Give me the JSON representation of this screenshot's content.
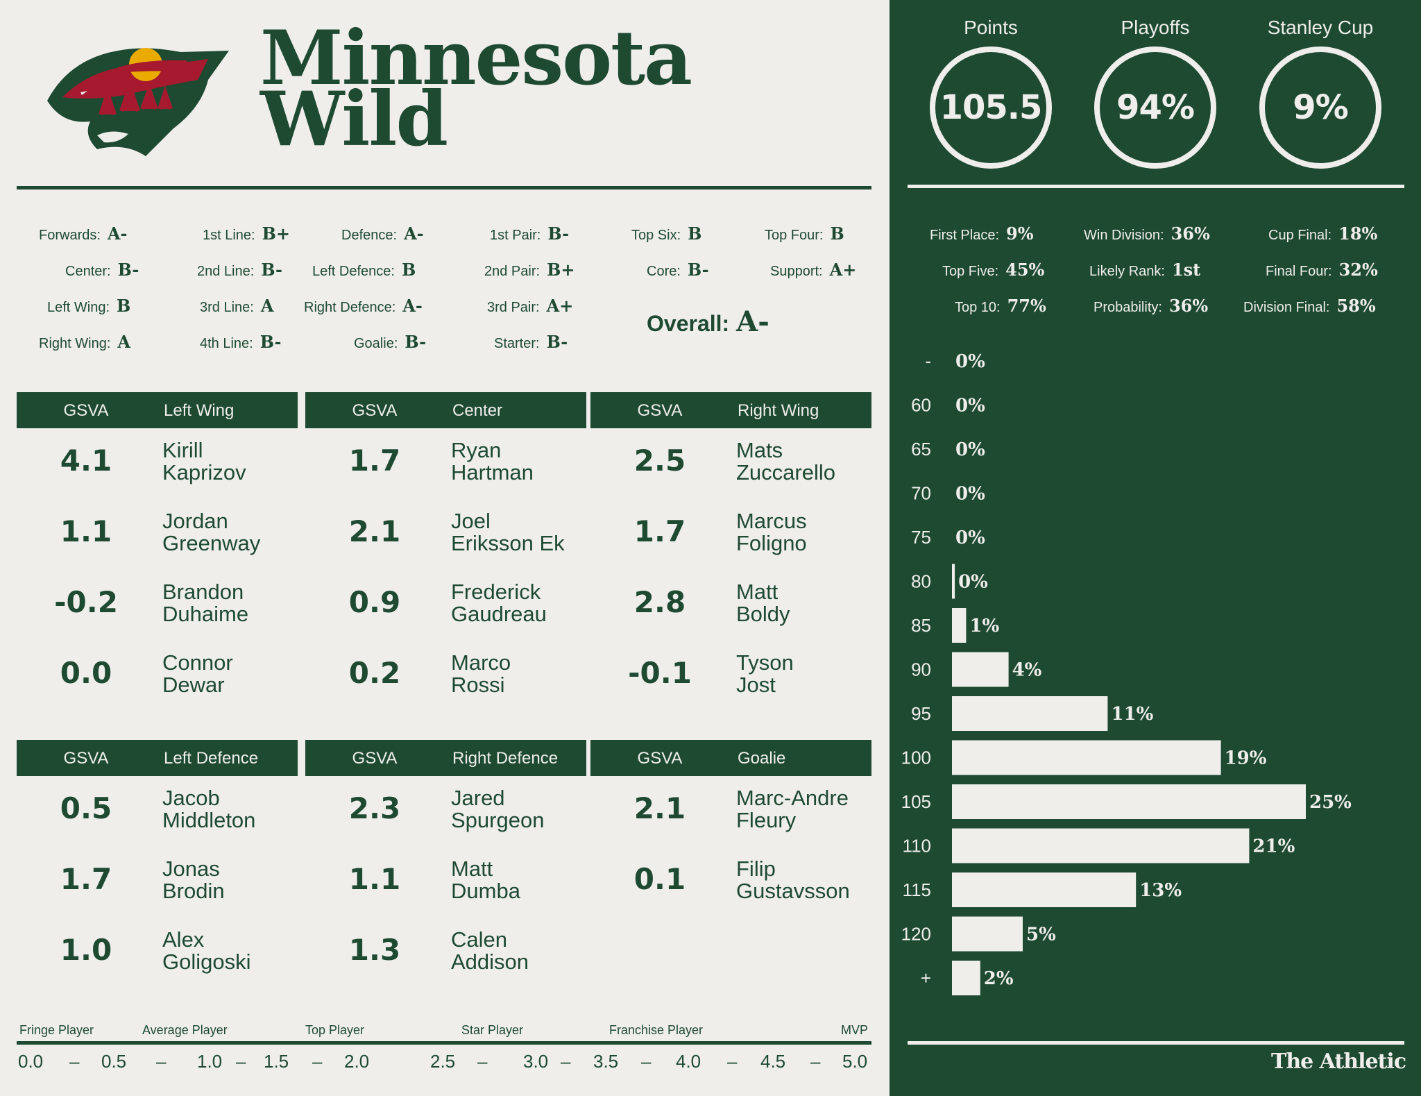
{
  "team": {
    "line1": "Minnesota",
    "line2": "Wild"
  },
  "colors": {
    "primary": "#1e4a32",
    "background": "#efeeeb",
    "logo_red": "#a6192e",
    "logo_gold": "#eaaa00"
  },
  "grades": [
    {
      "label": "Forwards:",
      "value": "A-"
    },
    {
      "label": "Center:",
      "value": "B-"
    },
    {
      "label": "Left Wing:",
      "value": "B"
    },
    {
      "label": "Right Wing:",
      "value": "A"
    },
    {
      "label": "1st Line:",
      "value": "B+"
    },
    {
      "label": "2nd Line:",
      "value": "B-"
    },
    {
      "label": "3rd Line:",
      "value": "A"
    },
    {
      "label": "4th Line:",
      "value": "B-"
    },
    {
      "label": "Defence:",
      "value": "A-"
    },
    {
      "label": "Left Defence:",
      "value": "B"
    },
    {
      "label": "Right Defence:",
      "value": "A-"
    },
    {
      "label": "Goalie:",
      "value": "B-"
    },
    {
      "label": "1st Pair:",
      "value": "B-"
    },
    {
      "label": "2nd Pair:",
      "value": "B+"
    },
    {
      "label": "3rd Pair:",
      "value": "A+"
    },
    {
      "label": "Starter:",
      "value": "B-"
    },
    {
      "label": "Top Six:",
      "value": "B"
    },
    {
      "label": "Core:",
      "value": "B-"
    },
    {
      "label": "Top Four:",
      "value": "B"
    },
    {
      "label": "Support:",
      "value": "A+"
    }
  ],
  "overall": {
    "label": "Overall:",
    "value": "A-"
  },
  "positions": [
    {
      "col": "GSVA",
      "title": "Left Wing",
      "players": [
        {
          "gsva": "4.1",
          "first": "Kirill",
          "last": "Kaprizov"
        },
        {
          "gsva": "1.1",
          "first": "Jordan",
          "last": "Greenway"
        },
        {
          "gsva": "-0.2",
          "first": "Brandon",
          "last": "Duhaime"
        },
        {
          "gsva": "0.0",
          "first": "Connor",
          "last": "Dewar"
        }
      ]
    },
    {
      "col": "GSVA",
      "title": "Center",
      "players": [
        {
          "gsva": "1.7",
          "first": "Ryan",
          "last": "Hartman"
        },
        {
          "gsva": "2.1",
          "first": "Joel",
          "last": "Eriksson Ek"
        },
        {
          "gsva": "0.9",
          "first": "Frederick",
          "last": "Gaudreau"
        },
        {
          "gsva": "0.2",
          "first": "Marco",
          "last": "Rossi"
        }
      ]
    },
    {
      "col": "GSVA",
      "title": "Right Wing",
      "players": [
        {
          "gsva": "2.5",
          "first": "Mats",
          "last": "Zuccarello"
        },
        {
          "gsva": "1.7",
          "first": "Marcus",
          "last": "Foligno"
        },
        {
          "gsva": "2.8",
          "first": "Matt",
          "last": "Boldy"
        },
        {
          "gsva": "-0.1",
          "first": "Tyson",
          "last": "Jost"
        }
      ]
    },
    {
      "col": "GSVA",
      "title": "Left Defence",
      "players": [
        {
          "gsva": "0.5",
          "first": "Jacob",
          "last": "Middleton"
        },
        {
          "gsva": "1.7",
          "first": "Jonas",
          "last": "Brodin"
        },
        {
          "gsva": "1.0",
          "first": "Alex",
          "last": "Goligoski"
        }
      ]
    },
    {
      "col": "GSVA",
      "title": "Right Defence",
      "players": [
        {
          "gsva": "2.3",
          "first": "Jared",
          "last": "Spurgeon"
        },
        {
          "gsva": "1.1",
          "first": "Matt",
          "last": "Dumba"
        },
        {
          "gsva": "1.3",
          "first": "Calen",
          "last": "Addison"
        }
      ]
    },
    {
      "col": "GSVA",
      "title": "Goalie",
      "players": [
        {
          "gsva": "2.1",
          "first": "Marc-Andre",
          "last": "Fleury"
        },
        {
          "gsva": "0.1",
          "first": "Filip",
          "last": "Gustavsson"
        }
      ]
    }
  ],
  "scale": {
    "labels": [
      "Fringe Player",
      "Average Player",
      "Top Player",
      "Star Player",
      "Franchise Player",
      "MVP"
    ],
    "numbers": [
      "0.0",
      "–",
      "0.5",
      "–",
      "1.0",
      "–",
      "1.5",
      "–",
      "2.0",
      "2.5",
      "–",
      "3.0",
      "–",
      "3.5",
      "–",
      "4.0",
      "–",
      "4.5",
      "–",
      "5.0"
    ]
  },
  "summary": [
    {
      "title": "Points",
      "value": "105.5"
    },
    {
      "title": "Playoffs",
      "value": "94%"
    },
    {
      "title": "Stanley Cup",
      "value": "9%"
    }
  ],
  "probabilities": [
    {
      "label": "First Place:",
      "value": "9%"
    },
    {
      "label": "Top Five:",
      "value": "45%"
    },
    {
      "label": "Top 10:",
      "value": "77%"
    },
    {
      "label": "Win Division:",
      "value": "36%"
    },
    {
      "label": "Likely Rank:",
      "value": "1st"
    },
    {
      "label": "Probability:",
      "value": "36%"
    },
    {
      "label": "Cup Final:",
      "value": "18%"
    },
    {
      "label": "Final Four:",
      "value": "32%"
    },
    {
      "label": "Division Final:",
      "value": "58%"
    }
  ],
  "chart_data": {
    "type": "bar",
    "orientation": "horizontal",
    "categories": [
      "-",
      "60",
      "65",
      "70",
      "75",
      "80",
      "85",
      "90",
      "95",
      "100",
      "105",
      "110",
      "115",
      "120",
      "+"
    ],
    "values": [
      0,
      0,
      0,
      0,
      0,
      0.2,
      1,
      4,
      11,
      19,
      25,
      21,
      13,
      5,
      2
    ],
    "value_labels": [
      "0%",
      "0%",
      "0%",
      "0%",
      "0%",
      "0%",
      "1%",
      "4%",
      "11%",
      "19%",
      "25%",
      "21%",
      "13%",
      "5%",
      "2%"
    ],
    "xlim": [
      0,
      25
    ],
    "bar_color": "#efeeeb"
  },
  "brand": "The Athletic"
}
